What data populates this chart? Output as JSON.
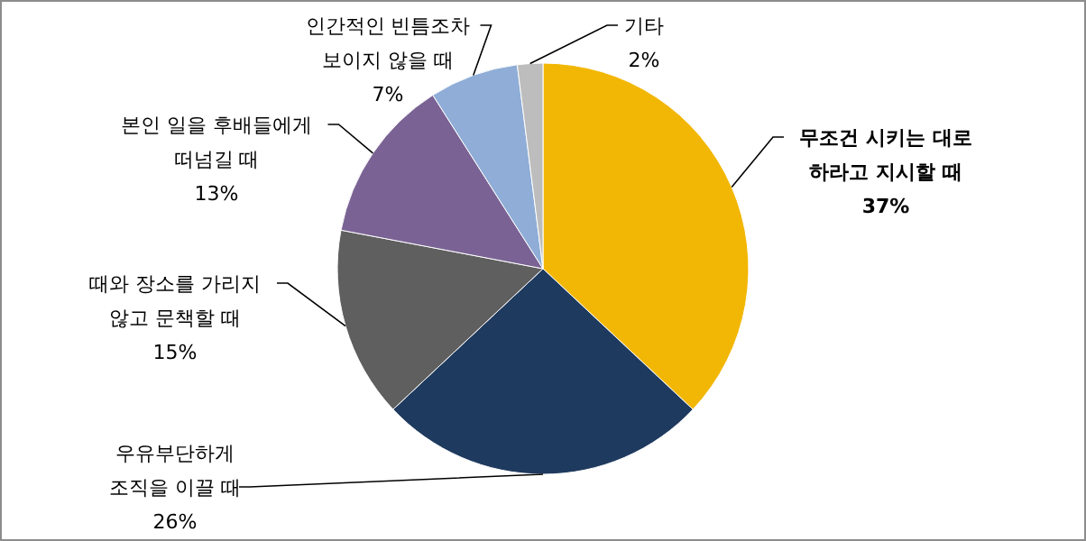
{
  "chart_data": {
    "type": "pie",
    "categories": [
      "무조건 시키는 대로\n하라고 지시할 때",
      "우유부단하게\n조직을 이끌 때",
      "때와 장소를 가리지\n않고 문책할 때",
      "본인 일을 후배들에게\n떠넘길 때",
      "인간적인 빈틈조차\n보이지 않을 때",
      "기타"
    ],
    "values": [
      37,
      26,
      15,
      13,
      7,
      2
    ],
    "value_labels": [
      "37%",
      "26%",
      "15%",
      "13%",
      "7%",
      "2%"
    ],
    "colors": [
      "#f2b705",
      "#1f3a5f",
      "#5f5f5f",
      "#7a6394",
      "#8fadd6",
      "#bdbdbd"
    ]
  }
}
